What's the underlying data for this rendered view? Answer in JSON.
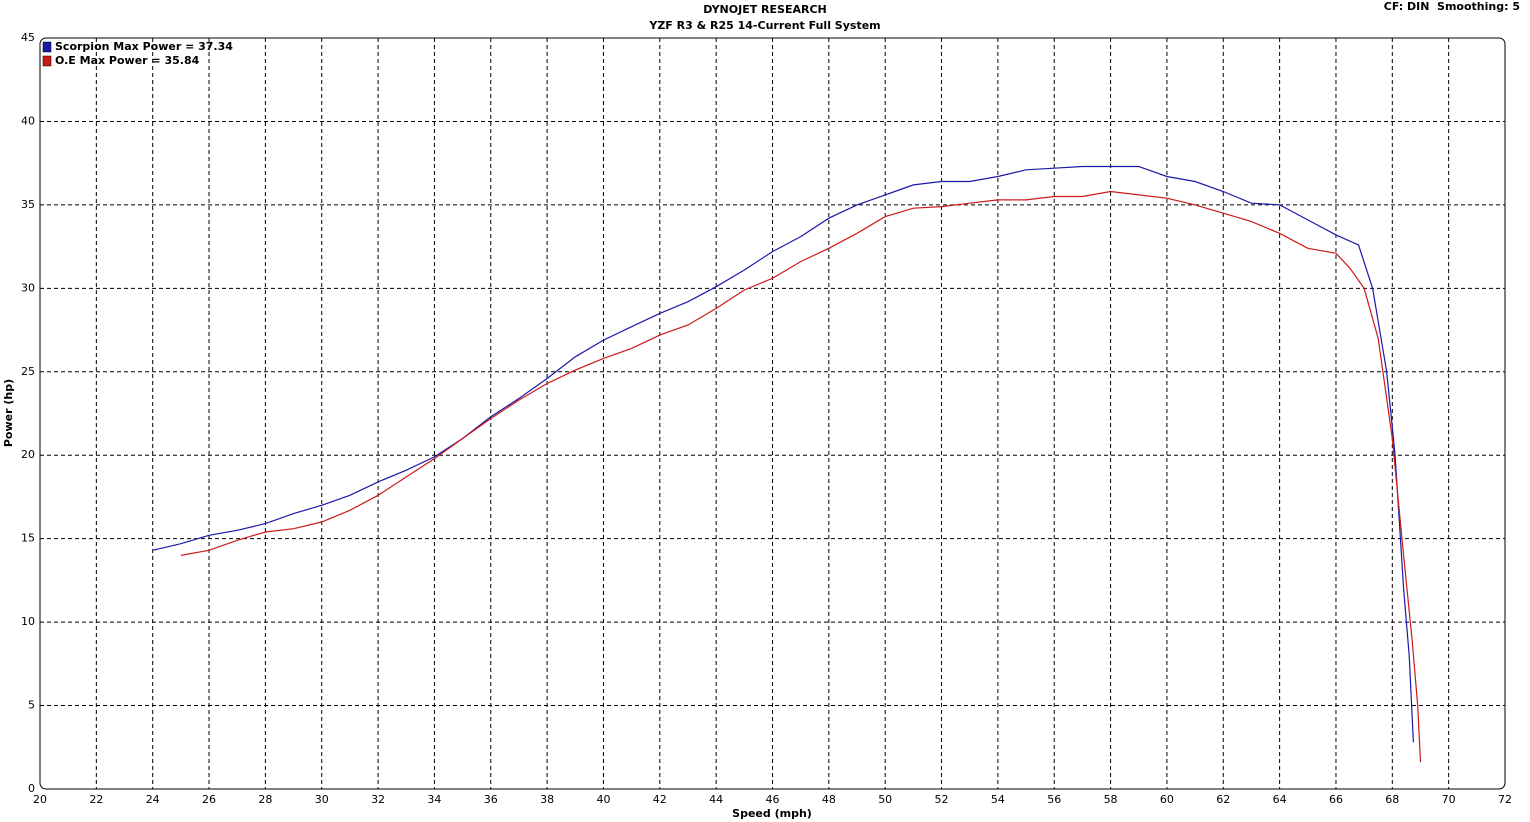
{
  "chart_data": {
    "type": "line",
    "title": "DYNOJET RESEARCH",
    "subtitle": "YZF R3 & R25 14-Current Full System",
    "info": "CF: DIN  Smoothing: 5",
    "x_label": "Speed (mph)",
    "y_label": "Power (hp)",
    "xlim": [
      20,
      72
    ],
    "ylim": [
      0,
      45
    ],
    "xticks": [
      20,
      22,
      24,
      26,
      28,
      30,
      32,
      34,
      36,
      38,
      40,
      42,
      44,
      46,
      48,
      50,
      52,
      54,
      56,
      58,
      60,
      62,
      64,
      66,
      68,
      70,
      72
    ],
    "yticks": [
      0,
      5,
      10,
      15,
      20,
      25,
      30,
      35,
      40,
      45
    ],
    "grid": true,
    "legend": "top-left",
    "series": [
      {
        "name": "Scorpion Max Power = 37.34",
        "color": "#1a1aa8",
        "x": [
          24,
          25,
          26,
          27,
          28,
          29,
          30,
          31,
          32,
          33,
          34,
          35,
          36,
          37,
          38,
          39,
          40,
          41,
          42,
          43,
          44,
          45,
          46,
          47,
          48,
          49,
          50,
          51,
          52,
          53,
          54,
          55,
          56,
          57,
          58,
          59,
          60,
          61,
          62,
          63,
          64,
          65,
          66,
          66.8,
          67.3,
          67.8,
          68.1,
          68.4,
          68.6,
          68.75
        ],
        "values": [
          14.3,
          14.7,
          15.2,
          15.5,
          15.9,
          16.5,
          17.0,
          17.6,
          18.4,
          19.1,
          19.9,
          21.0,
          22.3,
          23.4,
          24.6,
          25.9,
          26.9,
          27.7,
          28.5,
          29.2,
          30.1,
          31.1,
          32.2,
          33.1,
          34.2,
          35.0,
          35.6,
          36.2,
          36.4,
          36.4,
          36.7,
          37.1,
          37.2,
          37.3,
          37.3,
          37.3,
          36.7,
          36.4,
          35.8,
          35.1,
          35.0,
          34.1,
          33.2,
          32.6,
          30,
          25,
          20,
          12,
          8,
          2.8
        ]
      },
      {
        "name": "O.E Max Power = 35.84",
        "color": "#cc1a1a",
        "x": [
          25,
          26,
          27,
          28,
          29,
          30,
          31,
          32,
          33,
          34,
          35,
          36,
          37,
          38,
          39,
          40,
          41,
          42,
          43,
          44,
          45,
          46,
          47,
          48,
          49,
          50,
          51,
          52,
          53,
          54,
          55,
          56,
          57,
          58,
          59,
          60,
          61,
          62,
          63,
          64,
          65,
          66,
          66.5,
          67,
          67.5,
          68,
          68.4,
          68.7,
          68.9,
          69
        ],
        "values": [
          14.0,
          14.3,
          14.9,
          15.4,
          15.6,
          16.0,
          16.7,
          17.6,
          18.7,
          19.8,
          21.0,
          22.2,
          23.3,
          24.3,
          25.1,
          25.8,
          26.4,
          27.2,
          27.8,
          28.8,
          29.9,
          30.6,
          31.6,
          32.4,
          33.3,
          34.3,
          34.8,
          34.9,
          35.1,
          35.3,
          35.3,
          35.5,
          35.5,
          35.8,
          35.6,
          35.4,
          35.0,
          34.5,
          34.0,
          33.3,
          32.4,
          32.1,
          31.2,
          30.0,
          27,
          21,
          14,
          9,
          5,
          1.6
        ]
      }
    ]
  }
}
